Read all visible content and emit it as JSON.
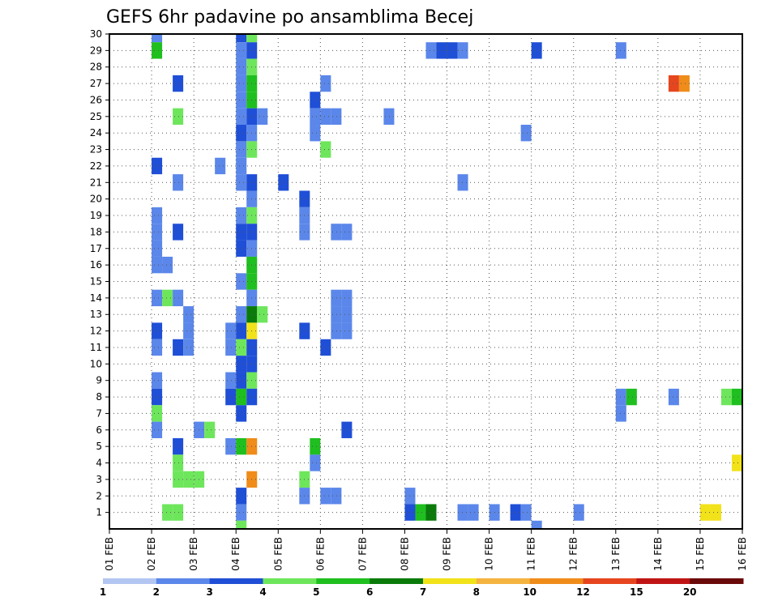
{
  "chart_data": {
    "type": "heatmap",
    "title": "GEFS 6hr padavine po ansamblima Becej",
    "x_tick_labels": [
      "01 FEB",
      "02 FEB",
      "03 FEB",
      "04 FEB",
      "05 FEB",
      "06 FEB",
      "07 FEB",
      "08 FEB",
      "09 FEB",
      "10 FEB",
      "11 FEB",
      "12 FEB",
      "13 FEB",
      "14 FEB",
      "15 FEB",
      "16 FEB"
    ],
    "y_tick_labels": [
      "1",
      "2",
      "3",
      "4",
      "5",
      "6",
      "7",
      "8",
      "9",
      "10",
      "11",
      "12",
      "13",
      "14",
      "15",
      "16",
      "17",
      "18",
      "19",
      "20",
      "21",
      "22",
      "23",
      "24",
      "25",
      "26",
      "27",
      "28",
      "29",
      "30"
    ],
    "x_range": [
      0,
      60
    ],
    "y_range": [
      0,
      30
    ],
    "steps_per_day": 4,
    "grid": true,
    "colorbar": {
      "levels": [
        "1",
        "2",
        "3",
        "4",
        "5",
        "6",
        "7",
        "8",
        "10",
        "12",
        "15",
        "20"
      ],
      "colors": [
        "#b3c6f2",
        "#5b87ea",
        "#1f4fd6",
        "#6ee65c",
        "#1fbf1f",
        "#0a7a0a",
        "#f2e21a",
        "#f5b340",
        "#f08c1a",
        "#e6461f",
        "#c01414",
        "#6b0a0a"
      ]
    },
    "cells": [
      [
        4,
        30,
        1
      ],
      [
        4,
        29,
        4
      ],
      [
        4,
        22,
        2
      ],
      [
        4,
        19,
        1
      ],
      [
        4,
        18,
        1
      ],
      [
        4,
        17,
        1
      ],
      [
        4,
        16,
        1
      ],
      [
        5,
        16,
        1
      ],
      [
        4,
        14,
        1
      ],
      [
        4,
        12,
        2
      ],
      [
        4,
        11,
        1
      ],
      [
        4,
        9,
        1
      ],
      [
        4,
        8,
        2
      ],
      [
        4,
        7,
        3
      ],
      [
        4,
        6,
        1
      ],
      [
        5,
        14,
        3
      ],
      [
        5,
        1,
        3
      ],
      [
        6,
        27,
        2
      ],
      [
        6,
        25,
        3
      ],
      [
        6,
        21,
        1
      ],
      [
        6,
        18,
        2
      ],
      [
        6,
        14,
        1
      ],
      [
        6,
        11,
        2
      ],
      [
        6,
        5,
        2
      ],
      [
        6,
        4,
        3
      ],
      [
        6,
        3,
        3
      ],
      [
        6,
        1,
        3
      ],
      [
        7,
        13,
        1
      ],
      [
        7,
        12,
        1
      ],
      [
        7,
        11,
        1
      ],
      [
        7,
        3,
        3
      ],
      [
        8,
        3,
        3
      ],
      [
        8,
        6,
        1
      ],
      [
        9,
        6,
        3
      ],
      [
        10,
        22,
        1
      ],
      [
        11,
        12,
        1
      ],
      [
        11,
        11,
        1
      ],
      [
        11,
        5,
        1
      ],
      [
        12,
        30,
        2
      ],
      [
        12,
        29,
        1
      ],
      [
        12,
        28,
        1
      ],
      [
        12,
        27,
        1
      ],
      [
        12,
        26,
        1
      ],
      [
        12,
        25,
        1
      ],
      [
        12,
        24,
        2
      ],
      [
        12,
        23,
        1
      ],
      [
        12,
        22,
        1
      ],
      [
        12,
        21,
        1
      ],
      [
        12,
        19,
        1
      ],
      [
        12,
        18,
        2
      ],
      [
        12,
        17,
        2
      ],
      [
        12,
        15,
        1
      ],
      [
        12,
        13,
        1
      ],
      [
        12,
        12,
        2
      ],
      [
        12,
        11,
        3
      ],
      [
        12,
        10,
        2
      ],
      [
        12,
        9,
        2
      ],
      [
        12,
        8,
        4
      ],
      [
        12,
        7,
        2
      ],
      [
        12,
        5,
        4
      ],
      [
        12,
        2,
        2
      ],
      [
        12,
        1,
        1
      ],
      [
        12,
        0,
        3
      ],
      [
        13,
        30,
        3
      ],
      [
        13,
        29,
        2
      ],
      [
        13,
        28,
        3
      ],
      [
        13,
        27,
        4
      ],
      [
        13,
        26,
        4
      ],
      [
        13,
        25,
        2
      ],
      [
        13,
        24,
        1
      ],
      [
        13,
        23,
        3
      ],
      [
        13,
        21,
        2
      ],
      [
        13,
        20,
        1
      ],
      [
        13,
        19,
        3
      ],
      [
        13,
        18,
        2
      ],
      [
        13,
        17,
        1
      ],
      [
        13,
        16,
        4
      ],
      [
        13,
        15,
        4
      ],
      [
        13,
        14,
        1
      ],
      [
        13,
        13,
        5
      ],
      [
        13,
        12,
        6
      ],
      [
        13,
        11,
        2
      ],
      [
        13,
        10,
        2
      ],
      [
        13,
        9,
        3
      ],
      [
        13,
        8,
        2
      ],
      [
        13,
        5,
        8
      ],
      [
        13,
        3,
        8
      ],
      [
        11,
        9,
        1
      ],
      [
        11,
        8,
        2
      ],
      [
        14,
        25,
        1
      ],
      [
        14,
        13,
        3
      ],
      [
        16,
        21,
        2
      ],
      [
        18,
        20,
        2
      ],
      [
        18,
        19,
        1
      ],
      [
        18,
        18,
        1
      ],
      [
        18,
        12,
        2
      ],
      [
        18,
        3,
        3
      ],
      [
        18,
        2,
        1
      ],
      [
        19,
        26,
        2
      ],
      [
        19,
        25,
        1
      ],
      [
        19,
        24,
        1
      ],
      [
        19,
        5,
        4
      ],
      [
        19,
        4,
        1
      ],
      [
        20,
        27,
        1
      ],
      [
        20,
        25,
        1
      ],
      [
        20,
        23,
        3
      ],
      [
        20,
        11,
        2
      ],
      [
        20,
        2,
        1
      ],
      [
        21,
        25,
        1
      ],
      [
        21,
        2,
        1
      ],
      [
        21,
        18,
        1
      ],
      [
        22,
        18,
        1
      ],
      [
        21,
        14,
        1
      ],
      [
        22,
        14,
        1
      ],
      [
        21,
        13,
        1
      ],
      [
        22,
        13,
        1
      ],
      [
        21,
        12,
        1
      ],
      [
        22,
        12,
        1
      ],
      [
        22,
        6,
        2
      ],
      [
        26,
        25,
        1
      ],
      [
        28,
        2,
        1
      ],
      [
        28,
        1,
        2
      ],
      [
        29,
        1,
        4
      ],
      [
        30,
        1,
        5
      ],
      [
        30,
        29,
        1
      ],
      [
        31,
        29,
        2
      ],
      [
        32,
        29,
        2
      ],
      [
        33,
        29,
        1
      ],
      [
        33,
        21,
        1
      ],
      [
        33,
        1,
        1
      ],
      [
        34,
        1,
        1
      ],
      [
        36,
        1,
        1
      ],
      [
        38,
        1,
        2
      ],
      [
        39,
        1,
        1
      ],
      [
        39,
        24,
        1
      ],
      [
        40,
        0,
        1
      ],
      [
        40,
        29,
        2
      ],
      [
        44,
        1,
        1
      ],
      [
        48,
        29,
        1
      ],
      [
        48,
        8,
        1
      ],
      [
        48,
        7,
        1
      ],
      [
        49,
        8,
        4
      ],
      [
        53,
        27,
        9
      ],
      [
        54,
        27,
        8
      ],
      [
        53,
        8,
        1
      ],
      [
        56,
        1,
        6
      ],
      [
        57,
        1,
        6
      ],
      [
        58,
        8,
        3
      ],
      [
        59,
        8,
        4
      ],
      [
        59,
        4,
        6
      ]
    ]
  }
}
